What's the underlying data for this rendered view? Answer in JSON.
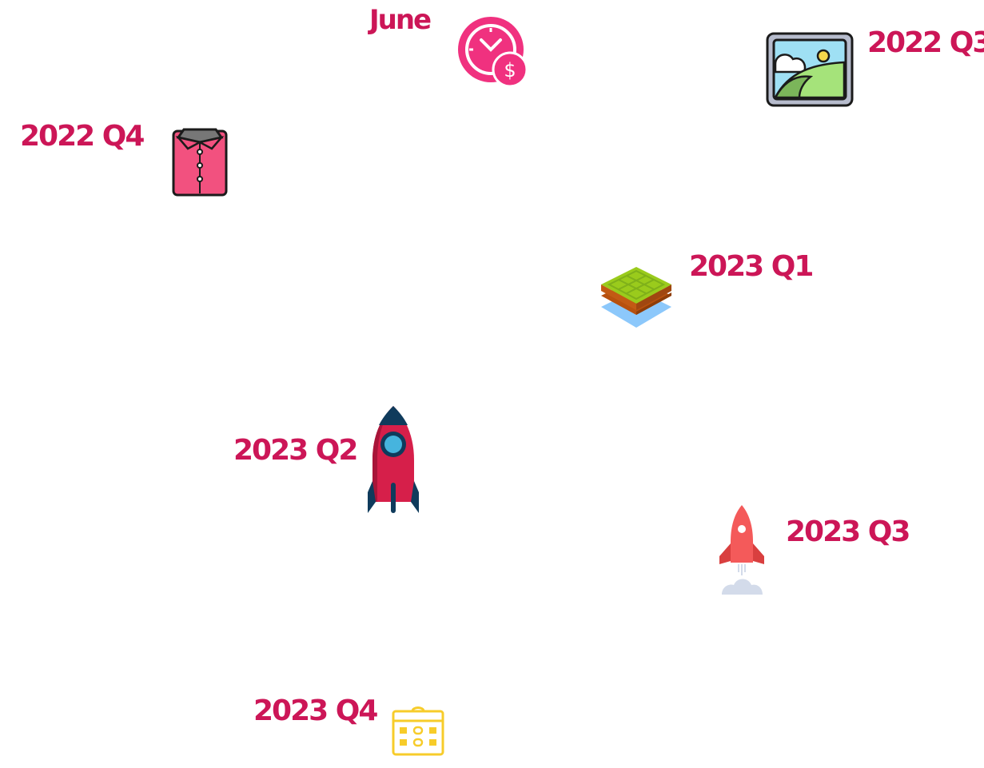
{
  "milestones": [
    {
      "label": "June",
      "icon": "clock-dollar-icon"
    },
    {
      "label": "2022 Q3",
      "icon": "picture-frame-icon"
    },
    {
      "label": "2022 Q4",
      "icon": "shirt-icon"
    },
    {
      "label": "2023 Q1",
      "icon": "soil-layers-icon"
    },
    {
      "label": "2023 Q2",
      "icon": "rocket-icon"
    },
    {
      "label": "2023 Q3",
      "icon": "rocket-launch-icon"
    },
    {
      "label": "2023 Q4",
      "icon": "calendar-icon"
    }
  ],
  "colors": {
    "label": "#cc1657",
    "clock": "#f0317f",
    "frame": "#b7bccd",
    "sky": "#9fe0f4",
    "hill": "#8ac45e",
    "shirt": "#f2517f",
    "grass": "#9acb1c",
    "soil": "#b7500e",
    "water": "#8cc8fb",
    "rocket": "#d61f4a",
    "rocket_dark": "#0f3b5c",
    "rocket_window": "#46b4de",
    "rocket2": "#f45a5a",
    "smoke": "#d3dbea",
    "calendar": "#f7cc2a"
  }
}
